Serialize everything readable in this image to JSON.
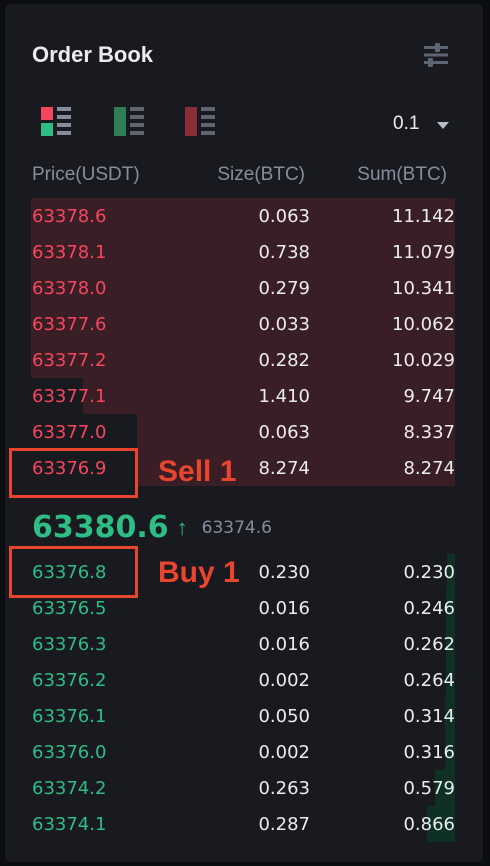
{
  "header": {
    "title": "Order Book",
    "settings_icon": "sliders-icon"
  },
  "toolbar": {
    "layout_buttons": [
      {
        "name": "layout-both-icon"
      },
      {
        "name": "layout-buy-icon"
      },
      {
        "name": "layout-sell-icon"
      }
    ],
    "precision_value": "0.1"
  },
  "columns": {
    "price": "Price(USDT)",
    "size": "Size(BTC)",
    "sum": "Sum(BTC)"
  },
  "asks": [
    {
      "price": "63378.6",
      "size": "0.063",
      "sum": "11.142"
    },
    {
      "price": "63378.1",
      "size": "0.738",
      "sum": "11.079"
    },
    {
      "price": "63378.0",
      "size": "0.279",
      "sum": "10.341"
    },
    {
      "price": "63377.6",
      "size": "0.033",
      "sum": "10.062"
    },
    {
      "price": "63377.2",
      "size": "0.282",
      "sum": "10.029"
    },
    {
      "price": "63377.1",
      "size": "1.410",
      "sum": "9.747"
    },
    {
      "price": "63377.0",
      "size": "0.063",
      "sum": "8.337"
    },
    {
      "price": "63376.9",
      "size": "8.274",
      "sum": "8.274"
    }
  ],
  "last_trade": {
    "price": "63380.6",
    "direction": "up",
    "mark_price": "63374.6"
  },
  "bids": [
    {
      "price": "63376.8",
      "size": "0.230",
      "sum": "0.230"
    },
    {
      "price": "63376.5",
      "size": "0.016",
      "sum": "0.246"
    },
    {
      "price": "63376.3",
      "size": "0.016",
      "sum": "0.262"
    },
    {
      "price": "63376.2",
      "size": "0.002",
      "sum": "0.264"
    },
    {
      "price": "63376.1",
      "size": "0.050",
      "sum": "0.314"
    },
    {
      "price": "63376.0",
      "size": "0.002",
      "sum": "0.316"
    },
    {
      "price": "63374.2",
      "size": "0.263",
      "sum": "0.579"
    },
    {
      "price": "63374.1",
      "size": "0.287",
      "sum": "0.866"
    }
  ],
  "annotations": {
    "sell_label": "Sell 1",
    "buy_label": "Buy 1"
  },
  "colors": {
    "ask": "#f6465d",
    "bid": "#2ebd85",
    "annotation": "#e8442e"
  }
}
